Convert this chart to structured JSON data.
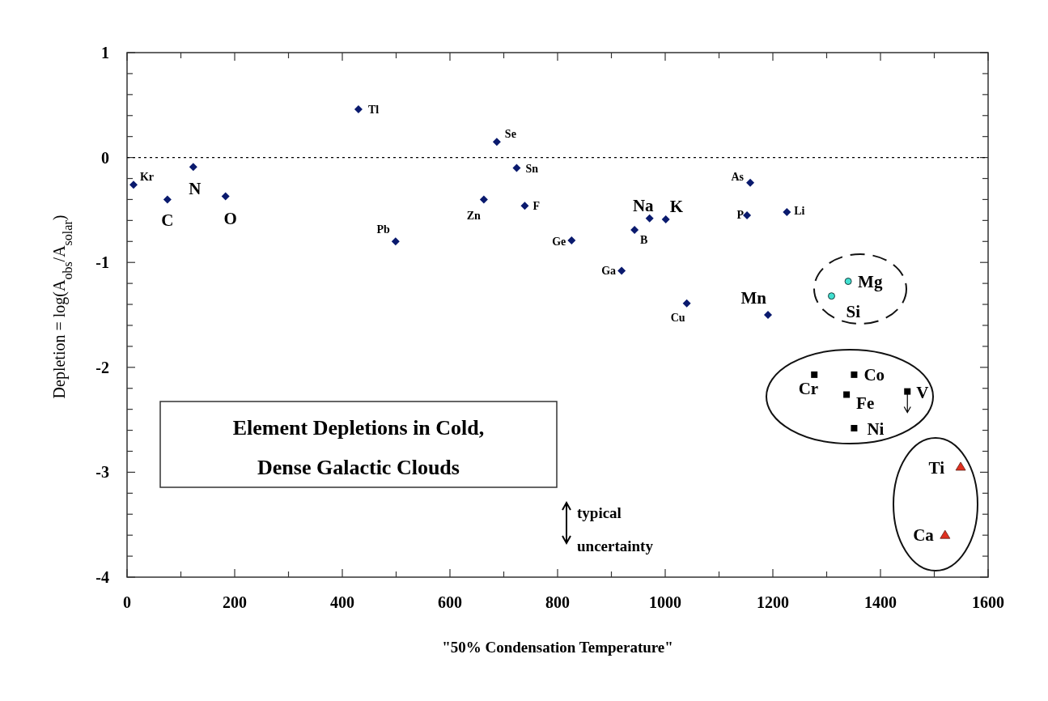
{
  "chart_data": {
    "type": "scatter",
    "title": "Element Depletions in Cold, Dense Galactic Clouds",
    "xlabel": "\"50% Condensation Temperature\"",
    "ylabel": "Depletion = log(A$_{obs}$/A$_{solar}$)",
    "xlim": [
      0,
      1600
    ],
    "ylim": [
      -4,
      1
    ],
    "xticks": [
      0,
      {
        "value": 100,
        "label": null
      },
      200,
      {
        "value": 300,
        "label": null
      },
      400,
      {
        "value": 500,
        "label": null
      },
      600,
      {
        "value": 700,
        "label": null
      },
      800,
      {
        "value": 900,
        "label": null
      },
      1000,
      {
        "value": 1100,
        "label": null
      },
      1200,
      {
        "value": 1300,
        "label": null
      },
      1400,
      {
        "value": 1500,
        "label": null
      },
      1600
    ],
    "yticks": [
      -4,
      {
        "value": -3.8,
        "label": null
      },
      {
        "value": -3.6,
        "label": null
      },
      {
        "value": -3.4,
        "label": null
      },
      {
        "value": -3.2,
        "label": null
      },
      -3,
      {
        "value": -2.8,
        "label": null
      },
      {
        "value": -2.6,
        "label": null
      },
      {
        "value": -2.4,
        "label": null
      },
      {
        "value": -2.2,
        "label": null
      },
      -2,
      {
        "value": -1.8,
        "label": null
      },
      {
        "value": -1.6,
        "label": null
      },
      {
        "value": -1.4,
        "label": null
      },
      {
        "value": -1.2,
        "label": null
      },
      -1,
      {
        "value": -0.8,
        "label": null
      },
      {
        "value": -0.6,
        "label": null
      },
      {
        "value": -0.4,
        "label": null
      },
      {
        "value": -0.2,
        "label": null
      },
      0,
      {
        "value": 0.2,
        "label": null
      },
      {
        "value": 0.4,
        "label": null
      },
      {
        "value": 0.6,
        "label": null
      },
      {
        "value": 0.8,
        "label": null
      },
      1
    ],
    "grid": false,
    "ref_lines": [
      {
        "axis": "y",
        "value": 0,
        "color": "#000000",
        "line_style": "dotted"
      }
    ],
    "series": [
      {
        "color": "#0a1a6e",
        "marker": "diamond",
        "x": [
          12,
          75,
          123,
          183,
          430,
          499,
          687,
          724,
          663,
          739,
          826,
          919,
          943,
          971,
          1001,
          1040,
          1158,
          1152,
          1226,
          1191
        ],
        "values": [
          -0.26,
          -0.4,
          -0.09,
          -0.37,
          0.46,
          -0.8,
          0.15,
          -0.1,
          -0.4,
          -0.46,
          -0.79,
          -1.08,
          -0.69,
          -0.58,
          -0.59,
          -1.39,
          -0.24,
          -0.55,
          -0.52,
          -1.5
        ]
      },
      {
        "color": "#40e0d0",
        "marker": "circle",
        "x": [
          1340,
          1309
        ],
        "values": [
          -1.18,
          -1.32
        ]
      },
      {
        "color": "#000000",
        "marker": "square",
        "x": [
          1277,
          1351,
          1337,
          1450,
          1351
        ],
        "values": [
          -2.07,
          -2.07,
          -2.26,
          -2.23,
          -2.58
        ],
        "errors": [
          null,
          null,
          null,
          [
            -2.43,
            -2.23
          ],
          null
        ]
      },
      {
        "color": "#e03020",
        "marker": "triangle",
        "x": [
          1549,
          1520
        ],
        "values": [
          -2.95,
          -3.6
        ]
      }
    ],
    "annotations": [
      {
        "text": "Kr",
        "x": 12,
        "y": -0.26
      },
      {
        "text": "C",
        "x": 75,
        "y": -0.4
      },
      {
        "text": "N",
        "x": 123,
        "y": -0.09
      },
      {
        "text": "O",
        "x": 183,
        "y": -0.37
      },
      {
        "text": "Tl",
        "x": 430,
        "y": 0.46
      },
      {
        "text": "Pb",
        "x": 499,
        "y": -0.8
      },
      {
        "text": "Se",
        "x": 687,
        "y": 0.15
      },
      {
        "text": "Sn",
        "x": 724,
        "y": -0.1
      },
      {
        "text": "Zn",
        "x": 663,
        "y": -0.4
      },
      {
        "text": "F",
        "x": 739,
        "y": -0.46
      },
      {
        "text": "Ge",
        "x": 826,
        "y": -0.79
      },
      {
        "text": "Ga",
        "x": 919,
        "y": -1.08
      },
      {
        "text": "B",
        "x": 943,
        "y": -0.69
      },
      {
        "text": "Na",
        "x": 971,
        "y": -0.58
      },
      {
        "text": "K",
        "x": 1001,
        "y": -0.59
      },
      {
        "text": "Cu",
        "x": 1040,
        "y": -1.39
      },
      {
        "text": "As",
        "x": 1158,
        "y": -0.24
      },
      {
        "text": "P",
        "x": 1152,
        "y": -0.55
      },
      {
        "text": "Li",
        "x": 1226,
        "y": -0.52
      },
      {
        "text": "Mn",
        "x": 1191,
        "y": -1.5
      },
      {
        "text": "Mg",
        "x": 1340,
        "y": -1.18
      },
      {
        "text": "Si",
        "x": 1309,
        "y": -1.32
      },
      {
        "text": "Cr",
        "x": 1277,
        "y": -2.07
      },
      {
        "text": "Co",
        "x": 1351,
        "y": -2.07
      },
      {
        "text": "Fe",
        "x": 1337,
        "y": -2.26
      },
      {
        "text": "V",
        "x": 1450,
        "y": -2.23
      },
      {
        "text": "Ni",
        "x": 1351,
        "y": -2.58
      },
      {
        "text": "Ti",
        "x": 1549,
        "y": -2.95
      },
      {
        "text": "Ca",
        "x": 1520,
        "y": -3.6
      },
      "typical uncertainty"
    ]
  }
}
